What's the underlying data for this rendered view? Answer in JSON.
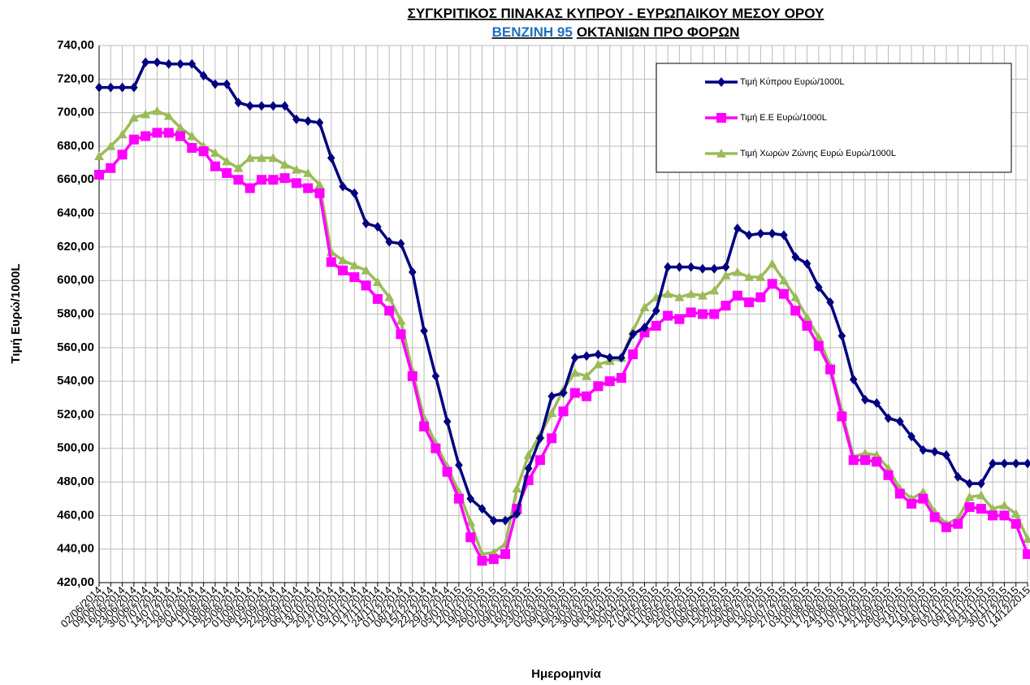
{
  "chart_data": {
    "type": "line",
    "title": "ΣΥΓΚΡΙΤΙΚΟΣ ΠΙΝΑΚΑΣ ΚΥΠΡΟΥ - ΕΥΡΩΠΑΙΚΟΥ ΜΕΣΟΥ ΟΡΟΥ",
    "subtitle_highlight": "ΒΕΝΖΙΝΗ 95",
    "subtitle": "ΟΚΤΑΝΙΩΝ ΠΡΟ ΦΟΡΩΝ",
    "x_label": "Ημερομηνία",
    "y_label": "Τιμή Ευρώ/1000L",
    "categories": [
      "02/06/2014",
      "09/06/2014",
      "16/06/2014",
      "23/06/2014",
      "30/06/2014",
      "07/07/2014",
      "14/07/2014",
      "21/07/2014",
      "28/07/2014",
      "04/08/2014",
      "11/08/2014",
      "18/08/2014",
      "25/08/2014",
      "01/09/2014",
      "08/09/2014",
      "15/09/2014",
      "22/09/2014",
      "29/09/2014",
      "06/10/2014",
      "13/10/2014",
      "20/10/2014",
      "27/10/2014",
      "03/11/2014",
      "10/11/2014",
      "17/11/2014",
      "24/11/2014",
      "01/12/2014",
      "08/12/2014",
      "15/12/2014",
      "22/12/2014",
      "29/12/2014",
      "05/01/2015",
      "12/01/2015",
      "19/01/2015",
      "26/01/2015",
      "02/02/2015",
      "09/02/2015",
      "16/02/2015",
      "23/02/2015",
      "02/03/2015",
      "09/03/2015",
      "16/03/2015",
      "23/03/2015",
      "30/03/2015",
      "06/04/2015",
      "13/04/2015",
      "20/04/2015",
      "27/04/2015",
      "04/05/2015",
      "11/05/2015",
      "18/05/2015",
      "25/05/2015",
      "01/06/2015",
      "08/06/2015",
      "15/06/2015",
      "22/06/2015",
      "29/06/2015",
      "06/07/2015",
      "13/07/2015",
      "20/07/2015",
      "27/07/2015",
      "03/08/2015",
      "10/08/2015",
      "17/08/2015",
      "24/08/2015",
      "31/08/2015",
      "07/09/2015",
      "14/09/2015",
      "21/09/2015",
      "28/09/2015",
      "05/10/2015",
      "12/10/2015",
      "19/10/2015",
      "26/10/2015",
      "02/11/2015",
      "09/11/2015",
      "16/11/2015",
      "23/11/2015",
      "30/11/2015",
      "07/12/2015",
      "14/12/2015"
    ],
    "series": [
      {
        "name": "Τιμή Κύπρου Ευρώ/1000L",
        "color": "#000080",
        "marker": "diamond",
        "values": [
          715,
          715,
          715,
          715,
          730,
          730,
          729,
          729,
          729,
          722,
          717,
          717,
          706,
          704,
          704,
          704,
          704,
          696,
          695,
          694,
          673,
          656,
          652,
          634,
          632,
          623,
          622,
          605,
          570,
          543,
          516,
          490,
          470,
          464,
          457,
          457,
          461,
          488,
          506,
          531,
          533,
          554,
          555,
          556,
          554,
          554,
          568,
          572,
          582,
          608,
          608,
          608,
          607,
          607,
          608,
          631,
          627,
          628,
          628,
          627,
          614,
          610,
          596,
          587,
          567,
          541,
          529,
          527,
          518,
          516,
          507,
          499,
          498,
          496,
          483,
          479,
          479,
          491,
          491,
          491,
          491
        ]
      },
      {
        "name": "Τιμή Ε.Ε Ευρώ/1000L",
        "color": "#ff00ff",
        "marker": "square",
        "values": [
          663,
          667,
          675,
          684,
          686,
          688,
          688,
          686,
          679,
          677,
          668,
          664,
          660,
          655,
          660,
          660,
          661,
          658,
          655,
          652,
          611,
          606,
          602,
          597,
          589,
          582,
          568,
          543,
          513,
          500,
          486,
          470,
          447,
          433,
          434,
          437,
          464,
          481,
          493,
          506,
          522,
          533,
          531,
          537,
          540,
          542,
          556,
          569,
          573,
          579,
          577,
          581,
          580,
          580,
          585,
          591,
          587,
          590,
          598,
          592,
          582,
          573,
          561,
          547,
          519,
          493,
          493,
          492,
          484,
          473,
          467,
          470,
          459,
          453,
          455,
          465,
          464,
          460,
          460,
          455,
          437
        ]
      },
      {
        "name": "Τιμή Χωρών Ζώνης Ευρώ Ευρώ/1000L",
        "color": "#9bbb59",
        "marker": "triangle",
        "values": [
          674,
          680,
          687,
          697,
          699,
          701,
          698,
          691,
          686,
          680,
          676,
          671,
          667,
          673,
          673,
          673,
          669,
          666,
          664,
          657,
          617,
          612,
          609,
          606,
          599,
          590,
          576,
          546,
          518,
          503,
          489,
          474,
          456,
          437,
          438,
          443,
          476,
          496,
          508,
          521,
          535,
          545,
          543,
          550,
          552,
          554,
          570,
          584,
          590,
          592,
          590,
          592,
          591,
          594,
          603,
          605,
          602,
          602,
          610,
          600,
          590,
          578,
          566,
          549,
          522,
          495,
          497,
          496,
          488,
          476,
          470,
          474,
          462,
          455,
          458,
          471,
          472,
          464,
          466,
          461,
          446
        ]
      }
    ],
    "ylim": [
      420,
      740
    ],
    "yticks": [
      {
        "value": 420,
        "label": "420,00"
      },
      {
        "value": 440,
        "label": "440,00"
      },
      {
        "value": 460,
        "label": "460,00"
      },
      {
        "value": 480,
        "label": "480,00"
      },
      {
        "value": 500,
        "label": "500,00"
      },
      {
        "value": 520,
        "label": "520,00"
      },
      {
        "value": 540,
        "label": "540,00"
      },
      {
        "value": 560,
        "label": "560,00"
      },
      {
        "value": 580,
        "label": "580,00"
      },
      {
        "value": 600,
        "label": "600,00"
      },
      {
        "value": 620,
        "label": "620,00"
      },
      {
        "value": 640,
        "label": "640,00"
      },
      {
        "value": 660,
        "label": "660,00"
      },
      {
        "value": 680,
        "label": "680,00"
      },
      {
        "value": 700,
        "label": "700,00"
      },
      {
        "value": 720,
        "label": "720,00"
      },
      {
        "value": 740,
        "label": "740,00"
      }
    ],
    "grid": true,
    "legend": "top-right"
  }
}
